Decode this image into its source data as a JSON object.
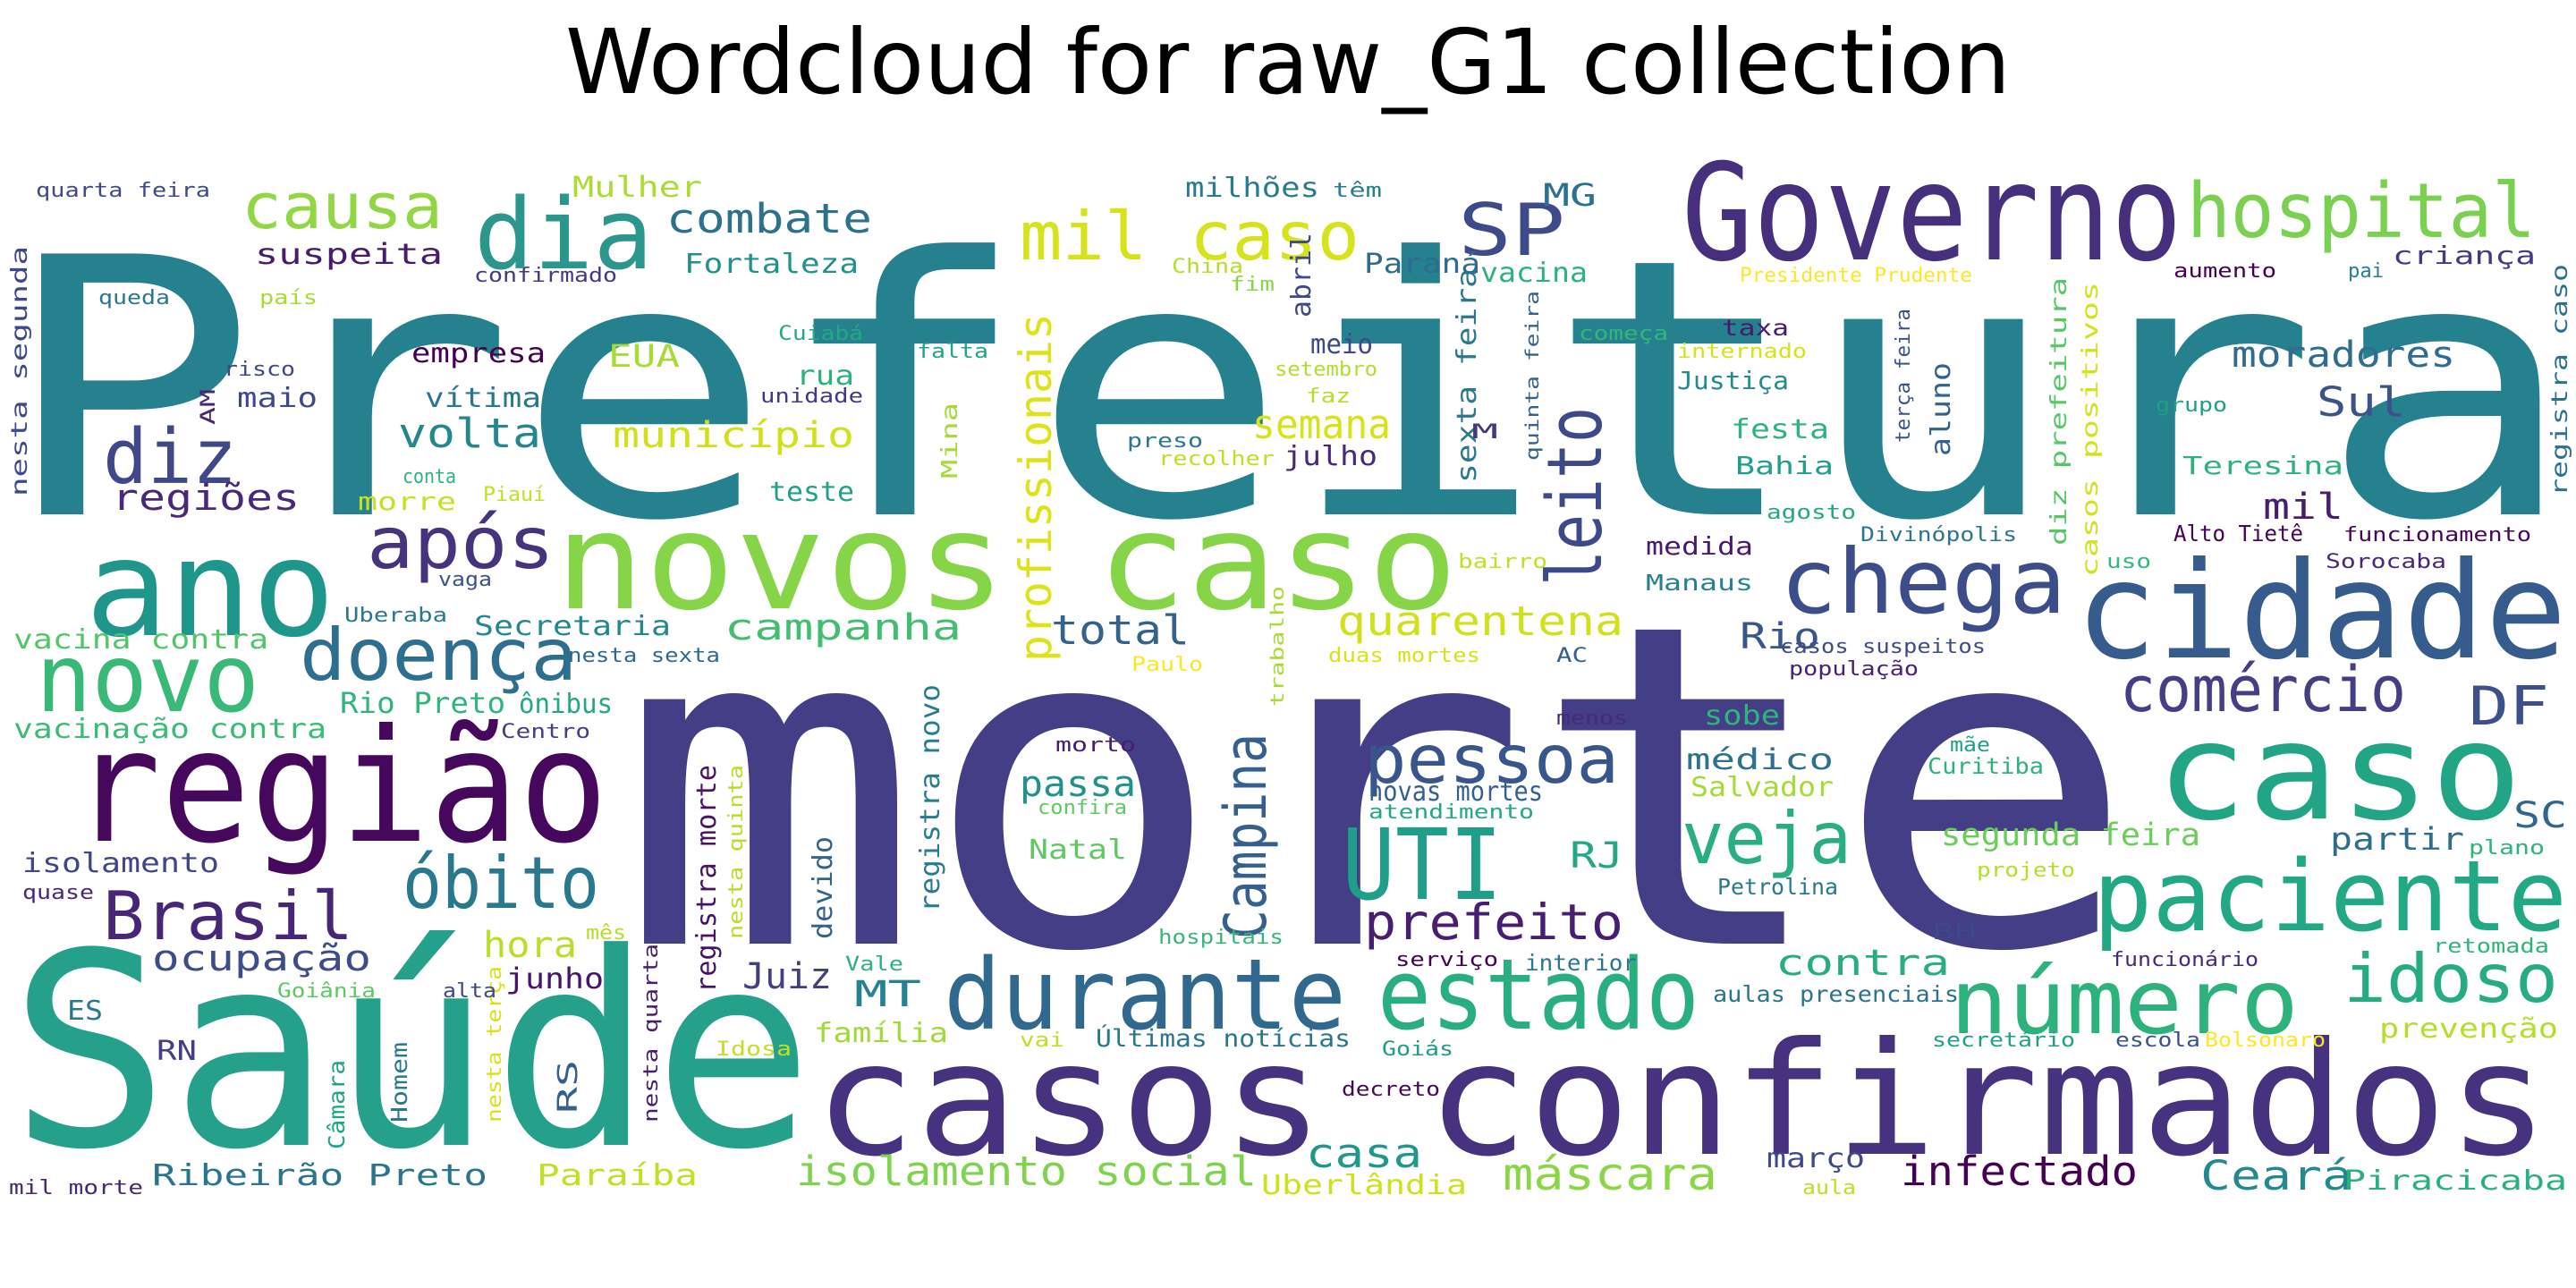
{
  "title": "Wordcloud for raw_G1 collection",
  "words": [
    {
      "text": "Prefeitura",
      "color": "#26818e"
    },
    {
      "text": "morte",
      "color": "#433e85"
    },
    {
      "text": "Saúde",
      "color": "#25a08a"
    },
    {
      "text": "casos confirmados",
      "color": "#46327e"
    },
    {
      "text": "Governo",
      "color": "#46307e"
    },
    {
      "text": "novos caso",
      "color": "#86d549"
    },
    {
      "text": "cidade",
      "color": "#365c8d"
    },
    {
      "text": "região",
      "color": "#46085c"
    },
    {
      "text": "ano",
      "color": "#1f968b"
    },
    {
      "text": "caso",
      "color": "#21a585"
    },
    {
      "text": "paciente",
      "color": "#22a884"
    },
    {
      "text": "durante",
      "color": "#31688e"
    },
    {
      "text": "estado",
      "color": "#29af7f"
    },
    {
      "text": "número",
      "color": "#2db27d"
    },
    {
      "text": "hospital",
      "color": "#7ad151"
    },
    {
      "text": "dia",
      "color": "#2a968c"
    },
    {
      "text": "novo",
      "color": "#38b977"
    },
    {
      "text": "mil caso",
      "color": "#d6e21a"
    },
    {
      "text": "chega",
      "color": "#3d4d8a"
    },
    {
      "text": "UTI",
      "color": "#1f9e89"
    },
    {
      "text": "leito",
      "color": "#3e4989"
    },
    {
      "text": "Campina",
      "color": "#355f8d"
    },
    {
      "text": "óbito",
      "color": "#2a788e"
    },
    {
      "text": "doença",
      "color": "#2e6e8e"
    },
    {
      "text": "Brasil",
      "color": "#482677"
    },
    {
      "text": "pessoa",
      "color": "#39558c"
    },
    {
      "text": "após",
      "color": "#46337e"
    },
    {
      "text": "veja",
      "color": "#29af7f"
    },
    {
      "text": "comércio",
      "color": "#433e85"
    },
    {
      "text": "diz",
      "color": "#3f4889"
    },
    {
      "text": "causa",
      "color": "#90d743"
    },
    {
      "text": "idoso",
      "color": "#25ac82"
    },
    {
      "text": "SP",
      "color": "#3e4a89"
    },
    {
      "text": "DF",
      "color": "#3c508b"
    },
    {
      "text": "profissionais",
      "color": "#dde318"
    },
    {
      "text": "prefeito",
      "color": "#481f70"
    },
    {
      "text": "casa",
      "color": "#1f988b"
    },
    {
      "text": "máscara",
      "color": "#8bd646"
    },
    {
      "text": "isolamento social",
      "color": "#7fd34e"
    },
    {
      "text": "infectado",
      "color": "#440154"
    },
    {
      "text": "Ceará",
      "color": "#23898e"
    },
    {
      "text": "combate",
      "color": "#2c718e"
    },
    {
      "text": "semana",
      "color": "#d8e219"
    },
    {
      "text": "quarentena",
      "color": "#d0e11c"
    },
    {
      "text": "volta",
      "color": "#24878e"
    },
    {
      "text": "município",
      "color": "#d0e11c"
    },
    {
      "text": "total",
      "color": "#33628d"
    },
    {
      "text": "campanha",
      "color": "#42be71"
    },
    {
      "text": "ocupação",
      "color": "#3e4c8a"
    },
    {
      "text": "hora",
      "color": "#b8de29"
    },
    {
      "text": "Juiz",
      "color": "#423f85"
    },
    {
      "text": "MT",
      "color": "#26828e"
    },
    {
      "text": "Sul",
      "color": "#3b528b"
    },
    {
      "text": "moradores",
      "color": "#2f6c8e"
    },
    {
      "text": "mil",
      "color": "#481c6e"
    },
    {
      "text": "Rio",
      "color": "#3a548c"
    },
    {
      "text": "contra",
      "color": "#26ad81"
    },
    {
      "text": "segunda feira",
      "color": "#6ccd5a"
    },
    {
      "text": "partir",
      "color": "#2e6d8e"
    },
    {
      "text": "SC",
      "color": "#31678e"
    },
    {
      "text": "Piracicaba",
      "color": "#2ab07f"
    },
    {
      "text": "prevenção",
      "color": "#b5de2b"
    },
    {
      "text": "RJ",
      "color": "#22a884"
    },
    {
      "text": "médico",
      "color": "#2d718e"
    },
    {
      "text": "Salvador",
      "color": "#a5db36"
    },
    {
      "text": "novas mortes",
      "color": "#34608d"
    },
    {
      "text": "passa",
      "color": "#21918c"
    },
    {
      "text": "Natal",
      "color": "#5ec962"
    },
    {
      "text": "regiões",
      "color": "#482878"
    },
    {
      "text": "suspeita",
      "color": "#481b6d"
    },
    {
      "text": "empresa",
      "color": "#440154"
    },
    {
      "text": "EUA",
      "color": "#a8db34"
    },
    {
      "text": "vítima",
      "color": "#2a768e"
    },
    {
      "text": "maio",
      "color": "#3e4989"
    },
    {
      "text": "Secretaria",
      "color": "#24878e"
    },
    {
      "text": "vacina contra",
      "color": "#52c569"
    },
    {
      "text": "vacinação contra",
      "color": "#3bbb75"
    },
    {
      "text": "isolamento",
      "color": "#3f4788"
    },
    {
      "text": "Ribeirão Preto",
      "color": "#2b748e"
    },
    {
      "text": "Paraíba",
      "color": "#c2df23"
    },
    {
      "text": "Uberlândia",
      "color": "#cde11d"
    },
    {
      "text": "março",
      "color": "#3e4a89"
    },
    {
      "text": "aulas presenciais",
      "color": "#2c728e"
    },
    {
      "text": "secretário",
      "color": "#1fa187"
    },
    {
      "text": "escola",
      "color": "#3b518b"
    },
    {
      "text": "Bolsonaro",
      "color": "#fde725"
    },
    {
      "text": "Últimas notícias",
      "color": "#2b758e"
    },
    {
      "text": "Goiás",
      "color": "#1f9a8a"
    },
    {
      "text": "decreto",
      "color": "#46085c"
    },
    {
      "text": "família",
      "color": "#a0da39"
    },
    {
      "text": "junho",
      "color": "#481467"
    },
    {
      "text": "registra morte",
      "color": "#471365"
    },
    {
      "text": "registra novo",
      "color": "#287c8e"
    },
    {
      "text": "devido",
      "color": "#33628d"
    },
    {
      "text": "nesta quinta",
      "color": "#b8de29"
    },
    {
      "text": "Manaus",
      "color": "#27808e"
    },
    {
      "text": "medida",
      "color": "#481a6c"
    },
    {
      "text": "sobe",
      "color": "#2fb47c"
    },
    {
      "text": "festa",
      "color": "#2eb37c"
    },
    {
      "text": "Bahia",
      "color": "#1f9e89"
    },
    {
      "text": "Justiça",
      "color": "#238a8d"
    },
    {
      "text": "Teresina",
      "color": "#2db27d"
    },
    {
      "text": "aluno",
      "color": "#33638d"
    },
    {
      "text": "diz prefeitura",
      "color": "#56c667"
    },
    {
      "text": "casos positivos",
      "color": "#d2e21b"
    },
    {
      "text": "registra caso",
      "color": "#2c718e"
    },
    {
      "text": "sexta feira",
      "color": "#2a788e"
    },
    {
      "text": "quinta feira",
      "color": "#33638d"
    },
    {
      "text": "terça feira",
      "color": "#3b528b"
    },
    {
      "text": "julho",
      "color": "#482878"
    },
    {
      "text": "meio",
      "color": "#3e4989"
    },
    {
      "text": "setembro",
      "color": "#b2dd2d"
    },
    {
      "text": "faz",
      "color": "#b5de2b"
    },
    {
      "text": "abril",
      "color": "#3f4889"
    },
    {
      "text": "fim",
      "color": "#8bd646"
    },
    {
      "text": "MG",
      "color": "#2c728e"
    },
    {
      "text": "Paraná",
      "color": "#2f6b8e"
    },
    {
      "text": "vacina",
      "color": "#2db27d"
    },
    {
      "text": "China",
      "color": "#b5de2b"
    },
    {
      "text": "milhões",
      "color": "#297b8e"
    },
    {
      "text": "têm",
      "color": "#277f8e"
    },
    {
      "text": "Mulher",
      "color": "#aadc32"
    },
    {
      "text": "Fortaleza",
      "color": "#21918c"
    },
    {
      "text": "confirmado",
      "color": "#443983"
    },
    {
      "text": "quarta feira",
      "color": "#3e4a89"
    },
    {
      "text": "queda",
      "color": "#2a788e"
    },
    {
      "text": "país",
      "color": "#a8db34"
    },
    {
      "text": "nesta segunda",
      "color": "#3e4989"
    },
    {
      "text": "risco",
      "color": "#3f4889"
    },
    {
      "text": "AM",
      "color": "#482475"
    },
    {
      "text": "conta",
      "color": "#2fb47c"
    },
    {
      "text": "morre",
      "color": "#c8e020"
    },
    {
      "text": "Piauí",
      "color": "#c2df23"
    },
    {
      "text": "teste",
      "color": "#1fa187"
    },
    {
      "text": "Mina",
      "color": "#a5db36"
    },
    {
      "text": "falta",
      "color": "#20a486"
    },
    {
      "text": "Cuiabá",
      "color": "#22a884"
    },
    {
      "text": "rua",
      "color": "#2db27d"
    },
    {
      "text": "unidade",
      "color": "#453882"
    },
    {
      "text": "preso",
      "color": "#2a788e"
    },
    {
      "text": "recolher",
      "color": "#bddf26"
    },
    {
      "text": "M",
      "color": "#453781"
    },
    {
      "text": "começa",
      "color": "#32b67a"
    },
    {
      "text": "internado",
      "color": "#d8e219"
    },
    {
      "text": "taxa",
      "color": "#481a6c"
    },
    {
      "text": "Presidente Prudente",
      "color": "#fde725"
    },
    {
      "text": "aumento",
      "color": "#440154"
    },
    {
      "text": "pai",
      "color": "#287d8e"
    },
    {
      "text": "criança",
      "color": "#443983"
    },
    {
      "text": "grupo",
      "color": "#1f9e89"
    },
    {
      "text": "agosto",
      "color": "#22a884"
    },
    {
      "text": "Divinópolis",
      "color": "#2b758e"
    },
    {
      "text": "Alto Tietê",
      "color": "#450457"
    },
    {
      "text": "funcionamento",
      "color": "#46075a"
    },
    {
      "text": "uso",
      "color": "#35b779"
    },
    {
      "text": "Sorocaba",
      "color": "#482878"
    },
    {
      "text": "bairro",
      "color": "#c0df25"
    },
    {
      "text": "casos suspeitos",
      "color": "#3e4c8a"
    },
    {
      "text": "população",
      "color": "#482071"
    },
    {
      "text": "AC",
      "color": "#355f8d"
    },
    {
      "text": "duas mortes",
      "color": "#d8e219"
    },
    {
      "text": "Paulo",
      "color": "#fde725"
    },
    {
      "text": "trabalho",
      "color": "#a8db34"
    },
    {
      "text": "nesta sexta",
      "color": "#31688e"
    },
    {
      "text": "Uberaba",
      "color": "#2a788e"
    },
    {
      "text": "vaga",
      "color": "#3b528b"
    },
    {
      "text": "Rio Preto",
      "color": "#2fb47c"
    },
    {
      "text": "ônibus",
      "color": "#22a884"
    },
    {
      "text": "Centro",
      "color": "#433e85"
    },
    {
      "text": "menos",
      "color": "#482878"
    },
    {
      "text": "morto",
      "color": "#481f70"
    },
    {
      "text": "confira",
      "color": "#5ec962"
    },
    {
      "text": "atendimento",
      "color": "#22a884"
    },
    {
      "text": "mãe",
      "color": "#1f9e89"
    },
    {
      "text": "Curitiba",
      "color": "#2db27d"
    },
    {
      "text": "BH",
      "color": "#3e4989"
    },
    {
      "text": "Petrolina",
      "color": "#2a788e"
    },
    {
      "text": "projeto",
      "color": "#b5de2b"
    },
    {
      "text": "plano",
      "color": "#2eb37c"
    },
    {
      "text": "retomada",
      "color": "#2fb47c"
    },
    {
      "text": "funcionário",
      "color": "#482878"
    },
    {
      "text": "interior",
      "color": "#2a788e"
    },
    {
      "text": "serviço",
      "color": "#440154"
    },
    {
      "text": "hospitais",
      "color": "#35b779"
    },
    {
      "text": "Vale",
      "color": "#2db27d"
    },
    {
      "text": "vai",
      "color": "#bddf26"
    },
    {
      "text": "Idosa",
      "color": "#c2df23"
    },
    {
      "text": "RS",
      "color": "#355f8d"
    },
    {
      "text": "nesta quarta",
      "color": "#481f70"
    },
    {
      "text": "nesta terça",
      "color": "#d8e219"
    },
    {
      "text": "Homem",
      "color": "#2a788e"
    },
    {
      "text": "Câmara",
      "color": "#20a486"
    },
    {
      "text": "alta",
      "color": "#3e4989"
    },
    {
      "text": "Goiânia",
      "color": "#5ec962"
    },
    {
      "text": "mês",
      "color": "#b5de2b"
    },
    {
      "text": "ES",
      "color": "#2a788e"
    },
    {
      "text": "RN",
      "color": "#433e85"
    },
    {
      "text": "quase",
      "color": "#482878"
    },
    {
      "text": "mil morte",
      "color": "#482878"
    },
    {
      "text": "aula",
      "color": "#bddf26"
    }
  ]
}
